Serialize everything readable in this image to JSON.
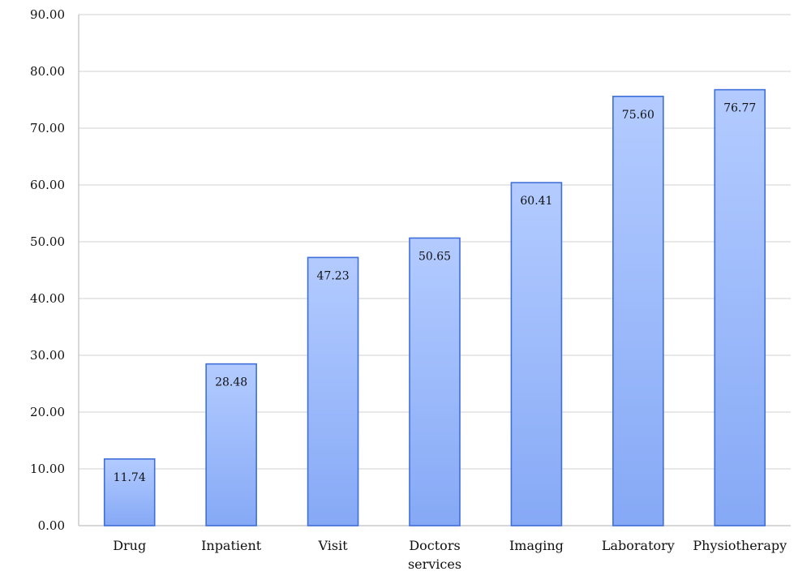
{
  "chart_data": {
    "type": "bar",
    "categories": [
      "Drug",
      "Inpatient",
      "Visit",
      "Doctors services",
      "Imaging",
      "Laboratory",
      "Physiotherapy"
    ],
    "category_lines": [
      [
        "Drug"
      ],
      [
        "Inpatient"
      ],
      [
        "Visit"
      ],
      [
        "Doctors",
        "services"
      ],
      [
        "Imaging"
      ],
      [
        "Laboratory"
      ],
      [
        "Physiotherapy"
      ]
    ],
    "values": [
      11.74,
      28.48,
      47.23,
      50.65,
      60.41,
      75.6,
      76.77
    ],
    "value_labels": [
      "11.74",
      "28.48",
      "47.23",
      "50.65",
      "60.41",
      "75.60",
      "76.77"
    ],
    "ylim": [
      0,
      90
    ],
    "yticks": [
      "0.00",
      "10.00",
      "20.00",
      "30.00",
      "40.00",
      "50.00",
      "60.00",
      "70.00",
      "80.00",
      "90.00"
    ],
    "title": "",
    "xlabel": "",
    "ylabel": "",
    "grid": true,
    "legend": "none",
    "colors": {
      "bar_top": "#b3cbff",
      "bar_bottom": "#86a9f6",
      "bar_edge": "#3f6fd8",
      "grid": "#d9d9d9"
    }
  }
}
